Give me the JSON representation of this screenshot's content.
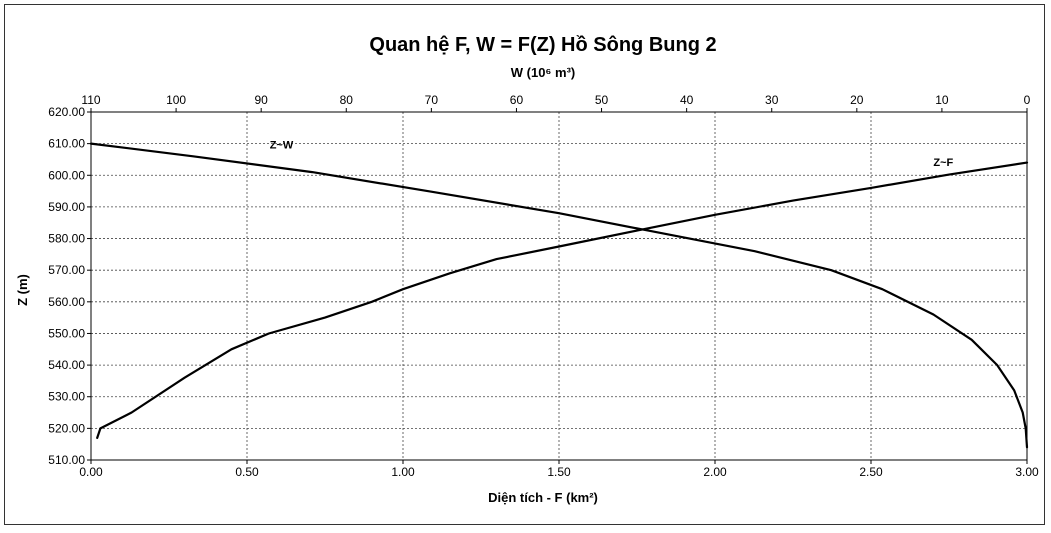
{
  "chart_data": {
    "type": "line",
    "title": "Quan hệ F, W = F(Z) Hồ Sông Bung 2",
    "xlabel": "Diện tích - F (km²)",
    "x2label": "W (10⁶ m³)",
    "ylabel": "Z (m)",
    "xlim": [
      0,
      3
    ],
    "x2lim": [
      110,
      0
    ],
    "x2_reversed": true,
    "ylim": [
      510,
      620
    ],
    "x_ticks": [
      "0.00",
      "0.50",
      "1.00",
      "1.50",
      "2.00",
      "2.50",
      "3.00"
    ],
    "x2_ticks": [
      "110",
      "100",
      "90",
      "80",
      "70",
      "60",
      "50",
      "40",
      "30",
      "20",
      "10",
      "0"
    ],
    "y_ticks": [
      "510.00",
      "520.00",
      "530.00",
      "540.00",
      "550.00",
      "560.00",
      "570.00",
      "580.00",
      "590.00",
      "600.00",
      "610.00",
      "620.00"
    ],
    "grid": true,
    "series": [
      {
        "name": "Z~F",
        "axis": "bottom",
        "points": [
          [
            0.02,
            517
          ],
          [
            0.03,
            520
          ],
          [
            0.13,
            525
          ],
          [
            0.3,
            536
          ],
          [
            0.45,
            545
          ],
          [
            0.57,
            550
          ],
          [
            0.75,
            555
          ],
          [
            0.9,
            560
          ],
          [
            1.0,
            564
          ],
          [
            1.15,
            569
          ],
          [
            1.3,
            573.5
          ],
          [
            1.5,
            577.5
          ],
          [
            1.75,
            582.5
          ],
          [
            2.0,
            587.5
          ],
          [
            2.25,
            592
          ],
          [
            2.5,
            596
          ],
          [
            2.75,
            600.2
          ],
          [
            3.0,
            604
          ]
        ]
      },
      {
        "name": "Z~W",
        "axis": "top",
        "points": [
          [
            0,
            514
          ],
          [
            0.15,
            520
          ],
          [
            0.5,
            525
          ],
          [
            1.5,
            532
          ],
          [
            3.5,
            540
          ],
          [
            6.5,
            548
          ],
          [
            11,
            556
          ],
          [
            17,
            564
          ],
          [
            23,
            570
          ],
          [
            32,
            576
          ],
          [
            44.5,
            582.5
          ],
          [
            55,
            588
          ],
          [
            70,
            594.8
          ],
          [
            84,
            601
          ],
          [
            98,
            606
          ],
          [
            110,
            610
          ]
        ]
      }
    ]
  }
}
